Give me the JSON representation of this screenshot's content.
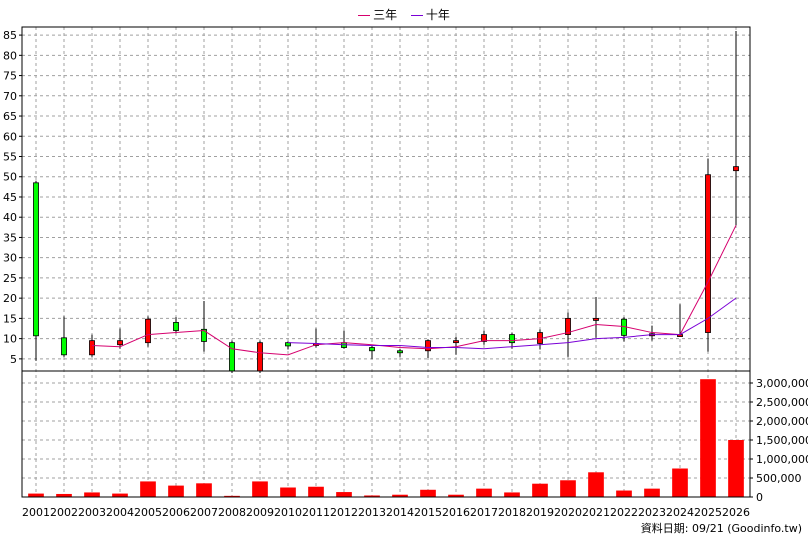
{
  "legend": {
    "ma3_label": "三年",
    "ma10_label": "十年"
  },
  "source_text": "資料日期: 09/21 (Goodinfo.tw)",
  "colors": {
    "up": "#ff0000",
    "down": "#00ff00",
    "ma3": "#d6006e",
    "ma10": "#7a00d6",
    "volume": "#ff0000",
    "grid": "#a0a0a0"
  },
  "chart_data": [
    {
      "type": "candlestick",
      "title": "",
      "categories": [
        "2001",
        "2002",
        "2003",
        "2004",
        "2005",
        "2006",
        "2007",
        "2008",
        "2009",
        "2010",
        "2011",
        "2012",
        "2013",
        "2014",
        "2015",
        "2016",
        "2017",
        "2018",
        "2019",
        "2020",
        "2021",
        "2022",
        "2023",
        "2024",
        "2025",
        "2026"
      ],
      "ylim": [
        2,
        87
      ],
      "yticks": [
        5,
        10,
        15,
        20,
        25,
        30,
        35,
        40,
        45,
        50,
        55,
        60,
        65,
        70,
        75,
        80,
        85
      ],
      "grid": true,
      "legend_position": "top-center",
      "candles": [
        {
          "x": "2001",
          "open": 48.5,
          "high": 49,
          "low": 4.5,
          "close": 10.7
        },
        {
          "x": "2002",
          "open": 10.2,
          "high": 15.5,
          "low": 5.5,
          "close": 6
        },
        {
          "x": "2003",
          "open": 6,
          "high": 11,
          "low": 5.5,
          "close": 9.5
        },
        {
          "x": "2004",
          "open": 8.5,
          "high": 12.5,
          "low": 7.5,
          "close": 9.5
        },
        {
          "x": "2005",
          "open": 9,
          "high": 15.5,
          "low": 8,
          "close": 14.8
        },
        {
          "x": "2006",
          "open": 14,
          "high": 15.3,
          "low": 11.3,
          "close": 12
        },
        {
          "x": "2007",
          "open": 12.3,
          "high": 19.3,
          "low": 6.8,
          "close": 9.3
        },
        {
          "x": "2008",
          "open": 9,
          "high": 9.5,
          "low": 1.5,
          "close": 2
        },
        {
          "x": "2009",
          "open": 2,
          "high": 9.5,
          "low": 1.5,
          "close": 9
        },
        {
          "x": "2010",
          "open": 9,
          "high": 9.3,
          "low": 7.3,
          "close": 8.2
        },
        {
          "x": "2011",
          "open": 8.5,
          "high": 12.5,
          "low": 7.8,
          "close": 8.8
        },
        {
          "x": "2012",
          "open": 9,
          "high": 12,
          "low": 7.5,
          "close": 7.8
        },
        {
          "x": "2013",
          "open": 7.8,
          "high": 8.3,
          "low": 5,
          "close": 7
        },
        {
          "x": "2014",
          "open": 7,
          "high": 7.5,
          "low": 5.5,
          "close": 6.8
        },
        {
          "x": "2015",
          "open": 7,
          "high": 9.8,
          "low": 5.2,
          "close": 9.5
        },
        {
          "x": "2016",
          "open": 9.3,
          "high": 10.5,
          "low": 6,
          "close": 9.5
        },
        {
          "x": "2017",
          "open": 9.3,
          "high": 12,
          "low": 8.5,
          "close": 11
        },
        {
          "x": "2018",
          "open": 11,
          "high": 11.5,
          "low": 7.5,
          "close": 9
        },
        {
          "x": "2019",
          "open": 8.8,
          "high": 12.3,
          "low": 7.3,
          "close": 11.5
        },
        {
          "x": "2020",
          "open": 11,
          "high": 16.5,
          "low": 5.5,
          "close": 15
        },
        {
          "x": "2021",
          "open": 14.5,
          "high": 20.3,
          "low": 10.2,
          "close": 15
        },
        {
          "x": "2022",
          "open": 14.8,
          "high": 15.3,
          "low": 9.3,
          "close": 10.8
        },
        {
          "x": "2023",
          "open": 10.8,
          "high": 13.2,
          "low": 9.5,
          "close": 11.2
        },
        {
          "x": "2024",
          "open": 11,
          "high": 18.5,
          "low": 10.5,
          "close": 11
        },
        {
          "x": "2025",
          "open": 11.5,
          "high": 54.5,
          "low": 6.8,
          "close": 50.5
        },
        {
          "x": "2026",
          "open": 51.5,
          "high": 86,
          "low": 38,
          "close": 52.5
        }
      ],
      "series": [
        {
          "name": "三年",
          "values": [
            null,
            null,
            8.3,
            8,
            11,
            11.5,
            12,
            7.5,
            6.5,
            6,
            8.5,
            9,
            8.5,
            7.8,
            7.5,
            8,
            9.5,
            9.5,
            10,
            11.5,
            13.5,
            13,
            11.5,
            11,
            24,
            38
          ]
        },
        {
          "name": "十年",
          "values": [
            null,
            null,
            null,
            null,
            null,
            null,
            null,
            null,
            null,
            9,
            8.8,
            8.5,
            8.3,
            8.3,
            7.8,
            7.8,
            7.5,
            8,
            8.5,
            9,
            10,
            10.3,
            11,
            11,
            15,
            20
          ]
        }
      ]
    },
    {
      "type": "bar",
      "title": "",
      "categories": [
        "2001",
        "2002",
        "2003",
        "2004",
        "2005",
        "2006",
        "2007",
        "2008",
        "2009",
        "2010",
        "2011",
        "2012",
        "2013",
        "2014",
        "2015",
        "2016",
        "2017",
        "2018",
        "2019",
        "2020",
        "2021",
        "2022",
        "2023",
        "2024",
        "2025",
        "2026"
      ],
      "values": [
        90000,
        80000,
        120000,
        90000,
        410000,
        300000,
        360000,
        30000,
        410000,
        250000,
        270000,
        130000,
        40000,
        60000,
        190000,
        60000,
        220000,
        120000,
        350000,
        440000,
        650000,
        170000,
        220000,
        750000,
        3100000,
        1500000
      ],
      "ylim": [
        0,
        3000000
      ],
      "yticks": [
        0,
        500000,
        1000000,
        1500000,
        2000000,
        2500000,
        3000000
      ],
      "ytick_labels": [
        "0",
        "500,000",
        "1,000,000",
        "1,500,000",
        "2,000,000",
        "2,500,000",
        "3,000,000"
      ],
      "grid": true
    }
  ]
}
